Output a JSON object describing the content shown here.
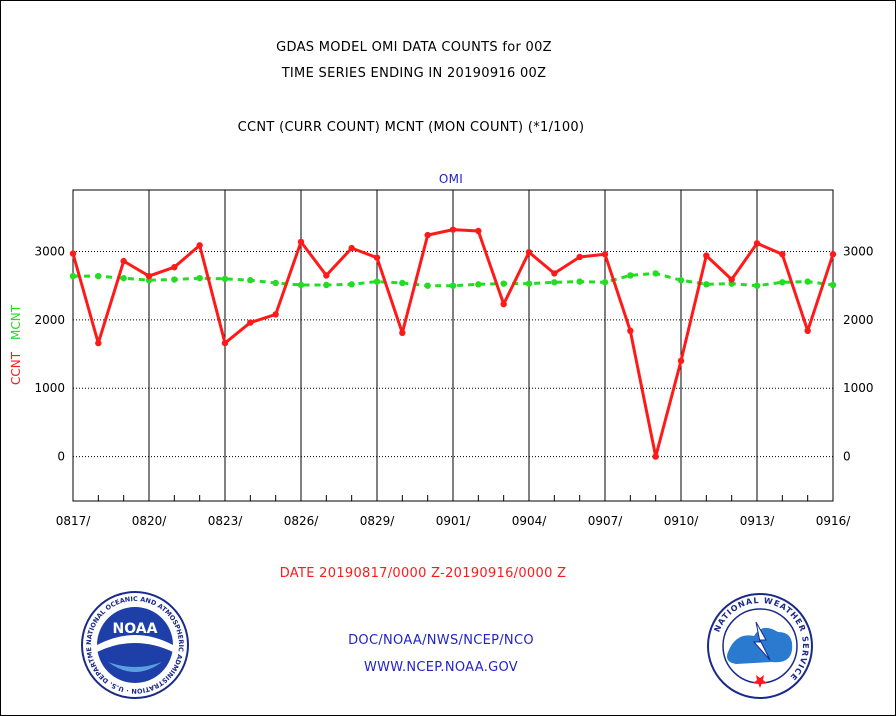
{
  "page": {
    "title_line1": "GDAS MODEL OMI DATA COUNTS for 00Z",
    "title_line2": "TIME SERIES ENDING IN 20190916 00Z",
    "subtitle": "CCNT (CURR COUNT) MCNT (MON COUNT) (*1/100)",
    "panel_label": "OMI",
    "date_range": "DATE 20190817/0000 Z-20190916/0000 Z",
    "footer_org": "DOC/NOAA/NWS/NCEP/NCO",
    "footer_url": "WWW.NCEP.NOAA.GOV"
  },
  "logos": {
    "noaa": {
      "text": "NOAA",
      "ring_text": "NATIONAL OCEANIC AND ATMOSPHERIC ADMINISTRATION · U.S. DEPARTMENT OF COMMERCE"
    },
    "nws": {
      "ring_text": "NATIONAL WEATHER SERVICE"
    }
  },
  "colors": {
    "ccnt": "#ff1a1a",
    "mcnt": "#22dd22",
    "text": "#000000",
    "date_text": "#ff1a1a",
    "footer_text": "#2222cc",
    "panel_label": "#2222cc"
  },
  "chart_data": {
    "type": "line",
    "ylabel_ccnt": "CCNT",
    "ylabel_mcnt": "MCNT",
    "ylim": [
      -650,
      3900
    ],
    "yticks": [
      0,
      1000,
      2000,
      3000
    ],
    "grid": true,
    "x_tick_labels": [
      "0817/",
      "0820/",
      "0823/",
      "0826/",
      "0829/",
      "0901/",
      "0904/",
      "0907/",
      "0910/",
      "0913/",
      "0916/"
    ],
    "x_tick_every_days": 3,
    "x_days": 31,
    "series": [
      {
        "name": "CCNT",
        "values": [
          2970,
          1660,
          2860,
          2640,
          2770,
          3090,
          1660,
          1960,
          2080,
          3140,
          2650,
          3050,
          2910,
          1810,
          3240,
          3320,
          3300,
          2230,
          2990,
          2680,
          2920,
          2960,
          1840,
          0,
          1400,
          2940,
          2590,
          3120,
          2960,
          1840,
          2960
        ]
      },
      {
        "name": "MCNT",
        "values": [
          2640,
          2640,
          2610,
          2580,
          2590,
          2610,
          2600,
          2580,
          2540,
          2510,
          2510,
          2520,
          2560,
          2540,
          2500,
          2500,
          2520,
          2530,
          2530,
          2550,
          2560,
          2550,
          2650,
          2680,
          2580,
          2520,
          2530,
          2500,
          2550,
          2560,
          2510
        ]
      }
    ]
  }
}
